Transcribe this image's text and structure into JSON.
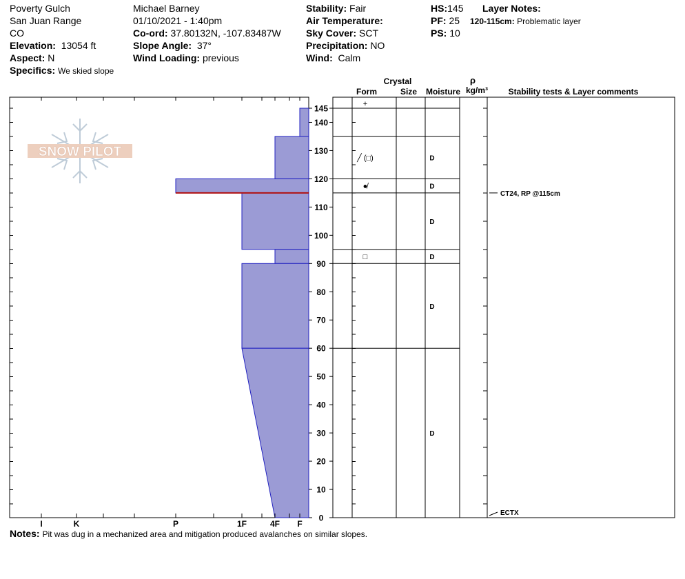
{
  "header": {
    "location": "Poverty Gulch",
    "range": "San Juan Range",
    "state": "CO",
    "elevation_label": "Elevation:",
    "elevation": "13054 ft",
    "aspect_label": "Aspect:",
    "aspect": "N",
    "specifics_label": "Specifics:",
    "specifics": "We skied slope",
    "observer": "Michael Barney",
    "datetime": "01/10/2021 - 1:40pm",
    "coord_label": "Co-ord:",
    "coord": "37.80132N, -107.83487W",
    "slope_label": "Slope Angle:",
    "slope": "37°",
    "wind_loading_label": "Wind Loading:",
    "wind_loading": "previous",
    "stability_label": "Stability:",
    "stability": "Fair",
    "air_temp_label": "Air Temperature:",
    "air_temp": "",
    "sky_label": "Sky Cover:",
    "sky": "SCT",
    "precip_label": "Precipitation:",
    "precip": "NO",
    "wind_label": "Wind:",
    "wind": "Calm",
    "hs_label": "HS:",
    "hs": "145",
    "pf_label": "PF:",
    "pf": "25",
    "ps_label": "PS:",
    "ps": "10",
    "layer_notes_label": "Layer Notes:",
    "layer_note_range": "120-115cm:",
    "layer_note_text": "Problematic layer"
  },
  "logo": {
    "text": "SNOW PILOT"
  },
  "columns": {
    "crystal": "Crystal",
    "form": "Form",
    "size": "Size",
    "moisture": "Moisture",
    "rho": "ρ",
    "density_unit": "kg/m³",
    "comments": "Stability tests & Layer comments"
  },
  "chart_data": {
    "type": "snow-profile",
    "y_axis": {
      "min": 0,
      "max": 145,
      "ticks": [
        0,
        10,
        20,
        30,
        40,
        50,
        60,
        70,
        80,
        90,
        100,
        110,
        120,
        130,
        140,
        145
      ],
      "unit": "cm"
    },
    "hardness_scale": [
      "I",
      "K",
      "P",
      "1F",
      "4F",
      "F"
    ],
    "layers": [
      {
        "top": 145,
        "bottom": 135,
        "hardness": "F",
        "form": "+",
        "moisture": ""
      },
      {
        "top": 135,
        "bottom": 120,
        "hardness": "4F",
        "form": "╱ (□)",
        "moisture": "D"
      },
      {
        "top": 120,
        "bottom": 115,
        "hardness": "P",
        "form": "●̸",
        "moisture": "D"
      },
      {
        "top": 115,
        "bottom": 95,
        "hardness": "1F",
        "form": "",
        "moisture": "D"
      },
      {
        "top": 95,
        "bottom": 90,
        "hardness": "4F",
        "form": "□",
        "moisture": "D"
      },
      {
        "top": 90,
        "bottom": 60,
        "hardness": "1F",
        "form": "",
        "moisture": "D"
      },
      {
        "top": 60,
        "bottom": 0,
        "hardness_top": "1F",
        "hardness_bottom": "4F",
        "form": "",
        "moisture": "D"
      }
    ],
    "problem_layer_depth": 115,
    "stability_tests": [
      {
        "depth": 115,
        "text": "CT24, RP @115cm"
      },
      {
        "depth": 0,
        "text": "ECTX"
      }
    ]
  },
  "notes": {
    "label": "Notes:",
    "text": "Pit was dug in a mechanized area and mitigation produced avalanches on similar slopes."
  }
}
